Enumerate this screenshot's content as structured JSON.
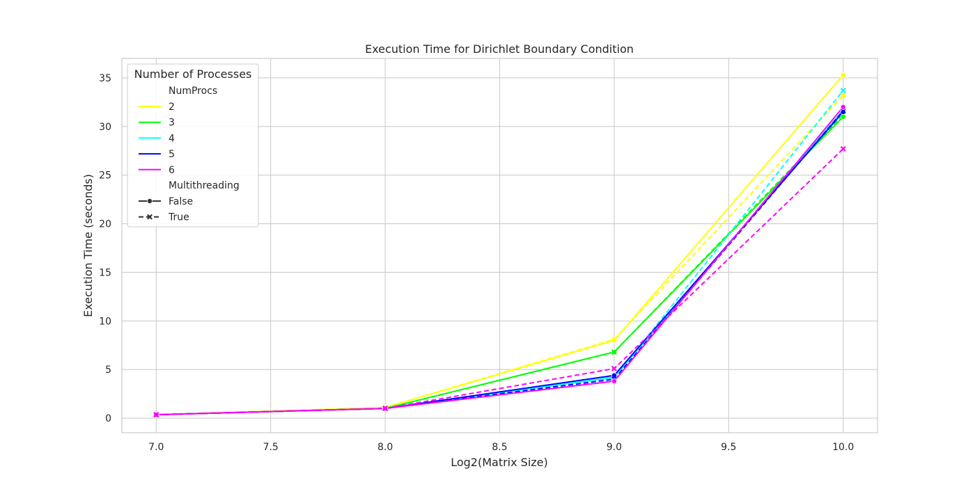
{
  "chart_data": {
    "type": "line",
    "title": "Execution Time for Dirichlet Boundary Condition",
    "xlabel": "Log2(Matrix Size)",
    "ylabel": "Execution Time (seconds)",
    "xlim": [
      6.85,
      10.15
    ],
    "ylim": [
      -1.5,
      37.0
    ],
    "x_ticks": [
      7.0,
      7.5,
      8.0,
      8.5,
      9.0,
      9.5,
      10.0
    ],
    "x_tick_labels": [
      "7.0",
      "7.5",
      "8.0",
      "8.5",
      "9.0",
      "9.5",
      "10.0"
    ],
    "y_ticks": [
      0,
      5,
      10,
      15,
      20,
      25,
      30,
      35
    ],
    "y_tick_labels": [
      "0",
      "5",
      "10",
      "15",
      "20",
      "25",
      "30",
      "35"
    ],
    "grid": true,
    "x": [
      7.0,
      8.0,
      9.0,
      10.0
    ],
    "legend": {
      "title": "Number of Processes",
      "placement": "upper-left",
      "hue_title": "NumProcs",
      "style_title": "Multithreading",
      "hue_entries": [
        "2",
        "3",
        "4",
        "5",
        "6"
      ],
      "style_entries": [
        "False",
        "True"
      ]
    },
    "series": [
      {
        "numprocs": "2",
        "multithreading": "False",
        "color": "#ffff00",
        "values": [
          0.35,
          1.1,
          8.0,
          35.3
        ]
      },
      {
        "numprocs": "2",
        "multithreading": "True",
        "color": "#ffff00",
        "values": [
          0.35,
          1.1,
          8.1,
          33.2
        ]
      },
      {
        "numprocs": "3",
        "multithreading": "False",
        "color": "#00ff00",
        "values": [
          0.35,
          1.0,
          6.8,
          31.0
        ]
      },
      {
        "numprocs": "3",
        "multithreading": "True",
        "color": "#00ff00",
        "values": [
          0.35,
          1.0,
          6.8,
          31.2
        ]
      },
      {
        "numprocs": "4",
        "multithreading": "False",
        "color": "#00ffff",
        "values": [
          0.35,
          1.0,
          4.2,
          31.7
        ]
      },
      {
        "numprocs": "4",
        "multithreading": "True",
        "color": "#00ffff",
        "values": [
          0.35,
          1.0,
          4.1,
          33.7
        ]
      },
      {
        "numprocs": "5",
        "multithreading": "False",
        "color": "#0000ff",
        "values": [
          0.35,
          1.0,
          4.4,
          31.5
        ]
      },
      {
        "numprocs": "5",
        "multithreading": "True",
        "color": "#0000ff",
        "values": [
          0.35,
          1.0,
          4.0,
          31.6
        ]
      },
      {
        "numprocs": "6",
        "multithreading": "False",
        "color": "#ff00ff",
        "values": [
          0.35,
          1.0,
          3.8,
          32.0
        ]
      },
      {
        "numprocs": "6",
        "multithreading": "True",
        "color": "#ff00ff",
        "values": [
          0.35,
          1.0,
          5.1,
          27.7
        ]
      }
    ]
  }
}
